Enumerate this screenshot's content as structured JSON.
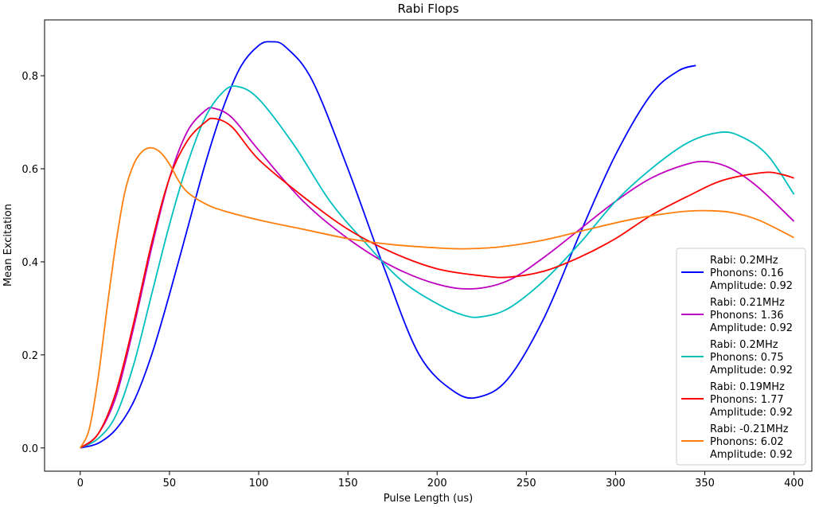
{
  "chart_data": {
    "type": "line",
    "title": "Rabi Flops",
    "xlabel": "Pulse Length (us)",
    "ylabel": "Mean Excitation",
    "xlim": [
      -20,
      410
    ],
    "ylim": [
      -0.05,
      0.92
    ],
    "xticks": [
      0,
      50,
      100,
      150,
      200,
      250,
      300,
      350,
      400
    ],
    "yticks": [
      0.0,
      0.2,
      0.4,
      0.6,
      0.8
    ],
    "xtick_labels": [
      "0",
      "50",
      "100",
      "150",
      "200",
      "250",
      "300",
      "350",
      "400"
    ],
    "ytick_labels": [
      "0.0",
      "0.2",
      "0.4",
      "0.6",
      "0.8"
    ],
    "grid": false,
    "legend_position": "lower-right",
    "series": [
      {
        "name": "Rabi: 0.2MHz\nPhonons: 0.16\nAmplitude: 0.92",
        "color": "#0000ff",
        "points": [
          [
            0,
            0.0
          ],
          [
            10,
            0.01
          ],
          [
            20,
            0.04
          ],
          [
            30,
            0.1
          ],
          [
            40,
            0.2
          ],
          [
            50,
            0.33
          ],
          [
            60,
            0.47
          ],
          [
            70,
            0.61
          ],
          [
            80,
            0.73
          ],
          [
            90,
            0.82
          ],
          [
            100,
            0.865
          ],
          [
            107,
            0.873
          ],
          [
            115,
            0.862
          ],
          [
            130,
            0.79
          ],
          [
            150,
            0.6
          ],
          [
            170,
            0.39
          ],
          [
            190,
            0.2
          ],
          [
            210,
            0.12
          ],
          [
            224,
            0.11
          ],
          [
            240,
            0.15
          ],
          [
            260,
            0.28
          ],
          [
            280,
            0.46
          ],
          [
            300,
            0.63
          ],
          [
            320,
            0.76
          ],
          [
            335,
            0.81
          ],
          [
            345,
            0.822
          ]
        ]
      },
      {
        "name": "Rabi: 0.21MHz\nPhonons: 1.36\nAmplitude: 0.92",
        "color": "#bf00bf",
        "points": [
          [
            0,
            0.0
          ],
          [
            10,
            0.03
          ],
          [
            20,
            0.11
          ],
          [
            30,
            0.26
          ],
          [
            40,
            0.43
          ],
          [
            50,
            0.58
          ],
          [
            60,
            0.68
          ],
          [
            70,
            0.725
          ],
          [
            75,
            0.73
          ],
          [
            85,
            0.71
          ],
          [
            100,
            0.64
          ],
          [
            125,
            0.53
          ],
          [
            150,
            0.45
          ],
          [
            175,
            0.39
          ],
          [
            200,
            0.352
          ],
          [
            220,
            0.342
          ],
          [
            240,
            0.36
          ],
          [
            260,
            0.41
          ],
          [
            280,
            0.47
          ],
          [
            300,
            0.53
          ],
          [
            320,
            0.58
          ],
          [
            340,
            0.61
          ],
          [
            352,
            0.615
          ],
          [
            365,
            0.6
          ],
          [
            380,
            0.56
          ],
          [
            400,
            0.487
          ]
        ]
      },
      {
        "name": "Rabi: 0.2MHz\nPhonons: 0.75\nAmplitude: 0.92",
        "color": "#00bfbf",
        "points": [
          [
            0,
            0.0
          ],
          [
            10,
            0.02
          ],
          [
            20,
            0.07
          ],
          [
            30,
            0.18
          ],
          [
            40,
            0.33
          ],
          [
            50,
            0.48
          ],
          [
            60,
            0.61
          ],
          [
            70,
            0.71
          ],
          [
            80,
            0.765
          ],
          [
            88,
            0.777
          ],
          [
            100,
            0.75
          ],
          [
            120,
            0.65
          ],
          [
            140,
            0.53
          ],
          [
            160,
            0.44
          ],
          [
            180,
            0.36
          ],
          [
            200,
            0.31
          ],
          [
            215,
            0.285
          ],
          [
            225,
            0.282
          ],
          [
            240,
            0.3
          ],
          [
            260,
            0.36
          ],
          [
            280,
            0.44
          ],
          [
            300,
            0.53
          ],
          [
            320,
            0.6
          ],
          [
            340,
            0.655
          ],
          [
            358,
            0.678
          ],
          [
            370,
            0.67
          ],
          [
            385,
            0.63
          ],
          [
            400,
            0.545
          ]
        ]
      },
      {
        "name": "Rabi: 0.19MHz\nPhonons: 1.77\nAmplitude: 0.92",
        "color": "#ff0000",
        "points": [
          [
            0,
            0.0
          ],
          [
            10,
            0.03
          ],
          [
            20,
            0.12
          ],
          [
            30,
            0.27
          ],
          [
            40,
            0.44
          ],
          [
            50,
            0.58
          ],
          [
            60,
            0.66
          ],
          [
            70,
            0.7
          ],
          [
            75,
            0.708
          ],
          [
            85,
            0.69
          ],
          [
            100,
            0.62
          ],
          [
            125,
            0.54
          ],
          [
            150,
            0.47
          ],
          [
            175,
            0.42
          ],
          [
            200,
            0.385
          ],
          [
            225,
            0.37
          ],
          [
            240,
            0.367
          ],
          [
            260,
            0.38
          ],
          [
            280,
            0.41
          ],
          [
            300,
            0.45
          ],
          [
            320,
            0.5
          ],
          [
            340,
            0.54
          ],
          [
            360,
            0.575
          ],
          [
            383,
            0.592
          ],
          [
            393,
            0.588
          ],
          [
            400,
            0.58
          ]
        ]
      },
      {
        "name": "Rabi: -0.21MHz\nPhonons: 6.02\nAmplitude: 0.92",
        "color": "#ff7f0e",
        "points": [
          [
            0,
            0.0
          ],
          [
            5,
            0.04
          ],
          [
            10,
            0.15
          ],
          [
            15,
            0.3
          ],
          [
            20,
            0.44
          ],
          [
            25,
            0.55
          ],
          [
            30,
            0.61
          ],
          [
            35,
            0.638
          ],
          [
            40,
            0.645
          ],
          [
            45,
            0.635
          ],
          [
            50,
            0.61
          ],
          [
            55,
            0.575
          ],
          [
            60,
            0.55
          ],
          [
            70,
            0.525
          ],
          [
            80,
            0.51
          ],
          [
            100,
            0.49
          ],
          [
            125,
            0.47
          ],
          [
            150,
            0.45
          ],
          [
            175,
            0.437
          ],
          [
            200,
            0.43
          ],
          [
            215,
            0.428
          ],
          [
            235,
            0.432
          ],
          [
            260,
            0.447
          ],
          [
            285,
            0.47
          ],
          [
            310,
            0.492
          ],
          [
            335,
            0.507
          ],
          [
            350,
            0.51
          ],
          [
            365,
            0.506
          ],
          [
            380,
            0.49
          ],
          [
            400,
            0.452
          ]
        ]
      }
    ]
  }
}
